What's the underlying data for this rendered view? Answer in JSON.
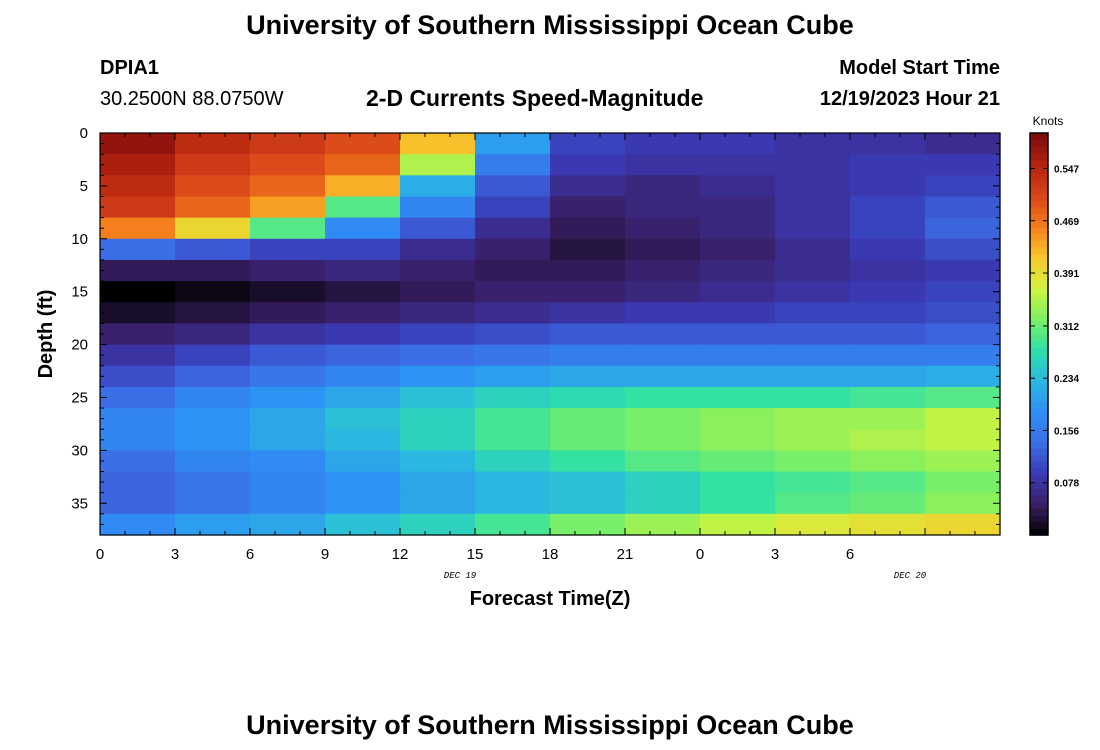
{
  "page": {
    "title_top": "University of Southern Mississippi Ocean Cube",
    "title_bottom": "University of Southern Mississippi Ocean Cube",
    "station_id": "DPIA1",
    "station_coords": "30.2500N  88.0750W",
    "product_title": "2-D Currents Speed-Magnitude",
    "model_start_label": "Model Start Time",
    "model_start_value": "12/19/2023 Hour 21",
    "date_label_1": "DEC 19",
    "date_label_2": "DEC 20"
  },
  "chart_data": {
    "type": "heatmap",
    "title": "2-D Currents Speed-Magnitude",
    "xlabel": "Forecast Time(Z)",
    "ylabel": "Depth (ft)",
    "colorbar_label": "Knots",
    "x_ticks": [
      "0",
      "3",
      "6",
      "9",
      "12",
      "15",
      "18",
      "21",
      "0",
      "3",
      "6"
    ],
    "y_ticks": [
      "0",
      "5",
      "10",
      "15",
      "20",
      "25",
      "30",
      "35"
    ],
    "y_tick_values": [
      0,
      5,
      10,
      15,
      20,
      25,
      30,
      35
    ],
    "xlim": [
      0,
      36
    ],
    "ylim": [
      0,
      38
    ],
    "colorbar_ticks": [
      "0.547",
      "0.469",
      "0.391",
      "0.312",
      "0.234",
      "0.156",
      "0.078"
    ],
    "colorbar_tick_values": [
      0.547,
      0.469,
      0.391,
      0.312,
      0.234,
      0.156,
      0.078
    ],
    "color_range": [
      0.0,
      0.6
    ],
    "x_hours": [
      0,
      3,
      6,
      9,
      12,
      15,
      18,
      21,
      24,
      27,
      30,
      33
    ],
    "depth_rows": [
      {
        "depth": 0,
        "values": [
          0.58,
          0.54,
          0.52,
          0.5,
          0.42,
          0.2,
          0.1,
          0.09,
          0.09,
          0.08,
          0.08,
          0.07
        ]
      },
      {
        "depth": 2,
        "values": [
          0.56,
          0.52,
          0.5,
          0.48,
          0.35,
          0.16,
          0.09,
          0.08,
          0.08,
          0.08,
          0.09,
          0.09
        ]
      },
      {
        "depth": 4,
        "values": [
          0.54,
          0.5,
          0.48,
          0.43,
          0.22,
          0.12,
          0.07,
          0.06,
          0.07,
          0.08,
          0.09,
          0.1
        ]
      },
      {
        "depth": 6,
        "values": [
          0.52,
          0.48,
          0.44,
          0.3,
          0.17,
          0.1,
          0.05,
          0.06,
          0.06,
          0.08,
          0.1,
          0.12
        ]
      },
      {
        "depth": 8,
        "values": [
          0.46,
          0.4,
          0.3,
          0.18,
          0.12,
          0.07,
          0.04,
          0.05,
          0.06,
          0.08,
          0.1,
          0.13
        ]
      },
      {
        "depth": 10,
        "values": [
          0.14,
          0.12,
          0.1,
          0.1,
          0.07,
          0.05,
          0.03,
          0.04,
          0.05,
          0.07,
          0.09,
          0.11
        ]
      },
      {
        "depth": 12,
        "values": [
          0.04,
          0.04,
          0.05,
          0.06,
          0.05,
          0.04,
          0.04,
          0.05,
          0.06,
          0.07,
          0.08,
          0.09
        ]
      },
      {
        "depth": 14,
        "values": [
          0.0,
          0.01,
          0.02,
          0.03,
          0.04,
          0.05,
          0.05,
          0.06,
          0.07,
          0.08,
          0.09,
          0.1
        ]
      },
      {
        "depth": 16,
        "values": [
          0.02,
          0.03,
          0.04,
          0.05,
          0.06,
          0.07,
          0.08,
          0.09,
          0.09,
          0.1,
          0.1,
          0.11
        ]
      },
      {
        "depth": 18,
        "values": [
          0.05,
          0.06,
          0.08,
          0.09,
          0.1,
          0.11,
          0.12,
          0.12,
          0.12,
          0.12,
          0.12,
          0.13
        ]
      },
      {
        "depth": 20,
        "values": [
          0.08,
          0.1,
          0.12,
          0.13,
          0.14,
          0.15,
          0.16,
          0.16,
          0.16,
          0.16,
          0.16,
          0.16
        ]
      },
      {
        "depth": 22,
        "values": [
          0.11,
          0.13,
          0.15,
          0.17,
          0.19,
          0.2,
          0.21,
          0.21,
          0.21,
          0.21,
          0.21,
          0.22
        ]
      },
      {
        "depth": 24,
        "values": [
          0.14,
          0.17,
          0.19,
          0.21,
          0.24,
          0.26,
          0.27,
          0.28,
          0.28,
          0.28,
          0.29,
          0.3
        ]
      },
      {
        "depth": 26,
        "values": [
          0.17,
          0.19,
          0.21,
          0.24,
          0.26,
          0.29,
          0.31,
          0.32,
          0.33,
          0.34,
          0.34,
          0.36
        ]
      },
      {
        "depth": 28,
        "values": [
          0.17,
          0.19,
          0.21,
          0.23,
          0.26,
          0.29,
          0.31,
          0.32,
          0.33,
          0.34,
          0.35,
          0.36
        ]
      },
      {
        "depth": 30,
        "values": [
          0.14,
          0.17,
          0.18,
          0.21,
          0.23,
          0.26,
          0.28,
          0.3,
          0.31,
          0.32,
          0.33,
          0.34
        ]
      },
      {
        "depth": 32,
        "values": [
          0.13,
          0.15,
          0.17,
          0.19,
          0.21,
          0.23,
          0.24,
          0.26,
          0.28,
          0.29,
          0.3,
          0.32
        ]
      },
      {
        "depth": 34,
        "values": [
          0.13,
          0.15,
          0.17,
          0.19,
          0.21,
          0.23,
          0.24,
          0.26,
          0.28,
          0.3,
          0.31,
          0.33
        ]
      },
      {
        "depth": 36,
        "values": [
          0.18,
          0.2,
          0.21,
          0.24,
          0.26,
          0.29,
          0.32,
          0.34,
          0.36,
          0.38,
          0.39,
          0.4
        ]
      }
    ]
  },
  "colors": {
    "palette": [
      "#000000",
      "#3a1f66",
      "#3a3ab6",
      "#3b6ee6",
      "#2f8ff5",
      "#2ab8e0",
      "#2ee0a8",
      "#7df063",
      "#d2f43e",
      "#f8c72b",
      "#f57c1c",
      "#d6431a",
      "#b4220f",
      "#7a0a0a"
    ]
  }
}
